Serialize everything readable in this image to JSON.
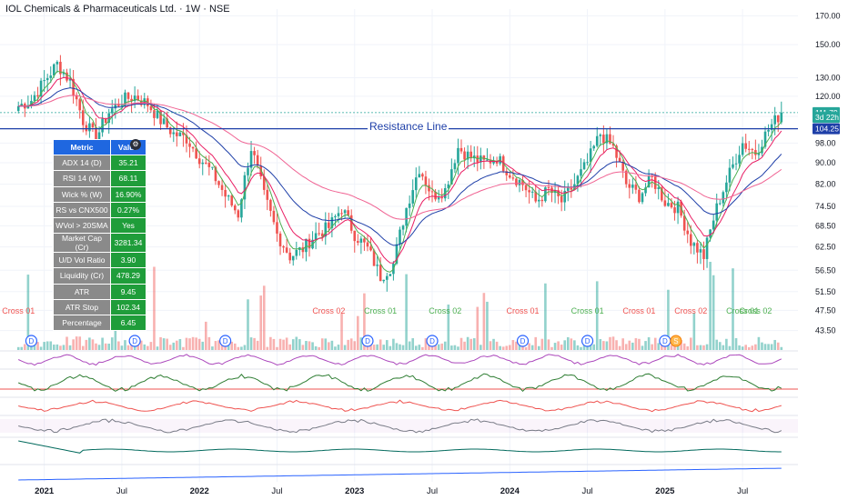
{
  "header": {
    "title": "IOL Chemicals & Pharmaceuticals Ltd. · 1W · NSE"
  },
  "resistance": {
    "label": "Resistance Line",
    "value": 104.25
  },
  "metrics_table": {
    "headers": [
      "Metric",
      "Value"
    ],
    "rows": [
      {
        "name": "ADX 14 (D)",
        "value": "35.21"
      },
      {
        "name": "RSI 14 (W)",
        "value": "68.11"
      },
      {
        "name": "Wick % (W)",
        "value": "16.90%"
      },
      {
        "name": "RS vs CNX500",
        "value": "0.27%"
      },
      {
        "name": "WVol > 20SMA",
        "value": "Yes"
      },
      {
        "name": "Market Cap (Cr)",
        "value": "3281.34"
      },
      {
        "name": "U/D Vol Ratio",
        "value": "3.90"
      },
      {
        "name": "Liquidity (Cr)",
        "value": "478.29"
      },
      {
        "name": "ATR",
        "value": "9.45"
      },
      {
        "name": "ATR Stop",
        "value": "102.34"
      },
      {
        "name": "Percentage",
        "value": "6.45"
      }
    ]
  },
  "price_tags": [
    {
      "text": "111.79",
      "value": 111.79,
      "color": "#26a69a"
    },
    {
      "text": "3d 22h",
      "value": 109.5,
      "color": "#26a69a"
    },
    {
      "text": "104.25",
      "value": 104.25,
      "color": "#1e3fa8"
    }
  ],
  "colors": {
    "up": "#26a69a",
    "down": "#ef5350",
    "ema_fast": "#4caf50",
    "ema_mid": "#e91e63",
    "ema_slow": "#1e3fa8",
    "ema_long": "#f06292"
  },
  "chart_data": {
    "type": "candlestick",
    "symbol": "IOL Chemicals & Pharmaceuticals Ltd.",
    "interval": "1W",
    "exchange": "NSE",
    "y_scale": "log",
    "y_ticks": [
      170.0,
      150.0,
      130.0,
      120.0,
      110.0,
      98.0,
      90.0,
      82.0,
      74.5,
      68.5,
      62.5,
      56.5,
      51.5,
      47.5,
      43.5
    ],
    "ylim": [
      40.0,
      175.0
    ],
    "x_tick_labels": [
      "2021",
      "Jul",
      "2022",
      "Jul",
      "2023",
      "Jul",
      "2024",
      "Jul",
      "2025",
      "Jul"
    ],
    "weekly_close_path": [
      [
        "2020-11",
        115
      ],
      [
        "2020-12",
        118
      ],
      [
        "2021-01",
        128
      ],
      [
        "2021-02",
        138
      ],
      [
        "2021-03",
        128
      ],
      [
        "2021-04",
        108
      ],
      [
        "2021-05",
        100
      ],
      [
        "2021-06",
        112
      ],
      [
        "2021-07",
        118
      ],
      [
        "2021-08",
        120
      ],
      [
        "2021-09",
        116
      ],
      [
        "2021-10",
        108
      ],
      [
        "2021-11",
        102
      ],
      [
        "2021-12",
        100
      ],
      [
        "2022-01",
        92
      ],
      [
        "2022-02",
        86
      ],
      [
        "2022-03",
        78
      ],
      [
        "2022-04",
        72
      ],
      [
        "2022-05",
        96
      ],
      [
        "2022-06",
        78
      ],
      [
        "2022-07",
        66
      ],
      [
        "2022-08",
        60
      ],
      [
        "2022-09",
        62
      ],
      [
        "2022-10",
        66
      ],
      [
        "2022-11",
        68
      ],
      [
        "2022-12",
        74
      ],
      [
        "2023-01",
        66
      ],
      [
        "2023-02",
        62
      ],
      [
        "2023-03",
        55
      ],
      [
        "2023-04",
        58
      ],
      [
        "2023-05",
        74
      ],
      [
        "2023-06",
        88
      ],
      [
        "2023-07",
        78
      ],
      [
        "2023-08",
        80
      ],
      [
        "2023-09",
        96
      ],
      [
        "2023-10",
        92
      ],
      [
        "2023-11",
        90
      ],
      [
        "2023-12",
        92
      ],
      [
        "2024-01",
        86
      ],
      [
        "2024-02",
        82
      ],
      [
        "2024-03",
        76
      ],
      [
        "2024-04",
        80
      ],
      [
        "2024-05",
        76
      ],
      [
        "2024-06",
        82
      ],
      [
        "2024-07",
        90
      ],
      [
        "2024-08",
        102
      ],
      [
        "2024-09",
        96
      ],
      [
        "2024-10",
        82
      ],
      [
        "2024-11",
        78
      ],
      [
        "2024-12",
        84
      ],
      [
        "2025-01",
        76
      ],
      [
        "2025-02",
        74
      ],
      [
        "2025-03",
        64
      ],
      [
        "2025-04",
        60
      ],
      [
        "2025-05",
        74
      ],
      [
        "2025-06",
        86
      ],
      [
        "2025-07",
        98
      ],
      [
        "2025-08",
        94
      ],
      [
        "2025-09",
        104
      ],
      [
        "2025-10",
        111.79
      ]
    ],
    "signal_labels": [
      {
        "text": "Cross 01",
        "date": "2020-11",
        "color": "#ef5350"
      },
      {
        "text": "Cross 01",
        "date": "2021-03",
        "color": "#ef5350"
      },
      {
        "text": "Cross 02",
        "date": "2022-11",
        "color": "#ef5350"
      },
      {
        "text": "Cross 01",
        "date": "2023-03",
        "color": "#4caf50"
      },
      {
        "text": "Cross 02",
        "date": "2023-08",
        "color": "#4caf50"
      },
      {
        "text": "Cross 01",
        "date": "2024-02",
        "color": "#ef5350"
      },
      {
        "text": "Cross 01",
        "date": "2024-07",
        "color": "#4caf50"
      },
      {
        "text": "Cross 01",
        "date": "2024-11",
        "color": "#ef5350"
      },
      {
        "text": "Cross 02",
        "date": "2025-03",
        "color": "#ef5350"
      },
      {
        "text": "Cross 01",
        "date": "2025-07",
        "color": "#4caf50"
      },
      {
        "text": "Cross 02",
        "date": "2025-08",
        "color": "#4caf50"
      }
    ],
    "dividend_markers": [
      "2020-12",
      "2021-08",
      "2022-03",
      "2023-02",
      "2023-07",
      "2024-02",
      "2024-07",
      "2025-01"
    ],
    "split_marker": "2025-01",
    "indicator_panes": [
      {
        "name": "oscillator-1",
        "axis_label": ""
      },
      {
        "name": "oscillator-2",
        "axis_label": "0.00"
      },
      {
        "name": "oscillator-3",
        "axis_label": "0.00"
      },
      {
        "name": "oscillator-4",
        "axis_label": ""
      },
      {
        "name": "oscillator-5",
        "axis_label": "0.00"
      },
      {
        "name": "obv",
        "axis_label": "200M"
      }
    ]
  }
}
